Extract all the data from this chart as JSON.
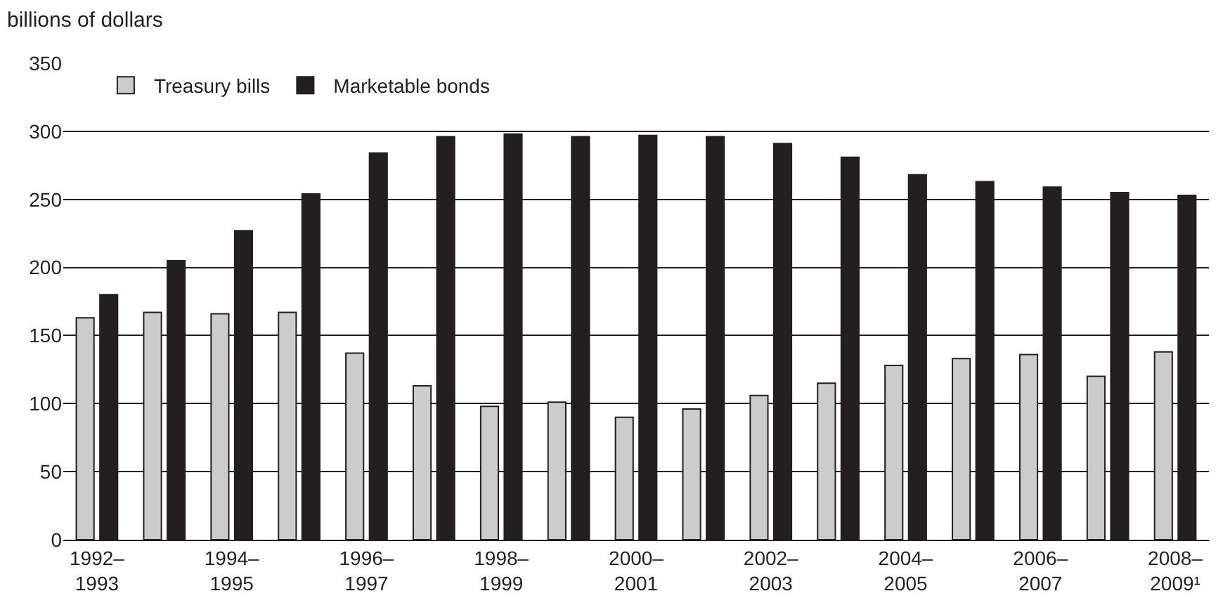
{
  "chart_data": {
    "type": "bar",
    "ylabel": "billions of dollars",
    "categories": [
      "1992–1993",
      null,
      "1994–1995",
      null,
      "1996–1997",
      null,
      "1998–1999",
      null,
      "2000–2001",
      null,
      "2002–2003",
      null,
      "2004–2005",
      null,
      "2006–2007",
      null,
      "2008–2009¹"
    ],
    "series": [
      {
        "name": "Treasury bills",
        "color": "#cccccc",
        "values": [
          163,
          167,
          166,
          167,
          137,
          113,
          98,
          101,
          90,
          96,
          106,
          115,
          128,
          133,
          136,
          120,
          138
        ]
      },
      {
        "name": "Marketable bonds",
        "color": "#231f20",
        "values": [
          180,
          205,
          227,
          254,
          284,
          296,
          298,
          296,
          297,
          296,
          291,
          281,
          268,
          263,
          259,
          255,
          253
        ]
      }
    ],
    "ylim": [
      0,
      350
    ],
    "yticks": [
      0,
      50,
      100,
      150,
      200,
      250,
      300,
      350
    ],
    "grid": "y",
    "legend": "top left"
  }
}
